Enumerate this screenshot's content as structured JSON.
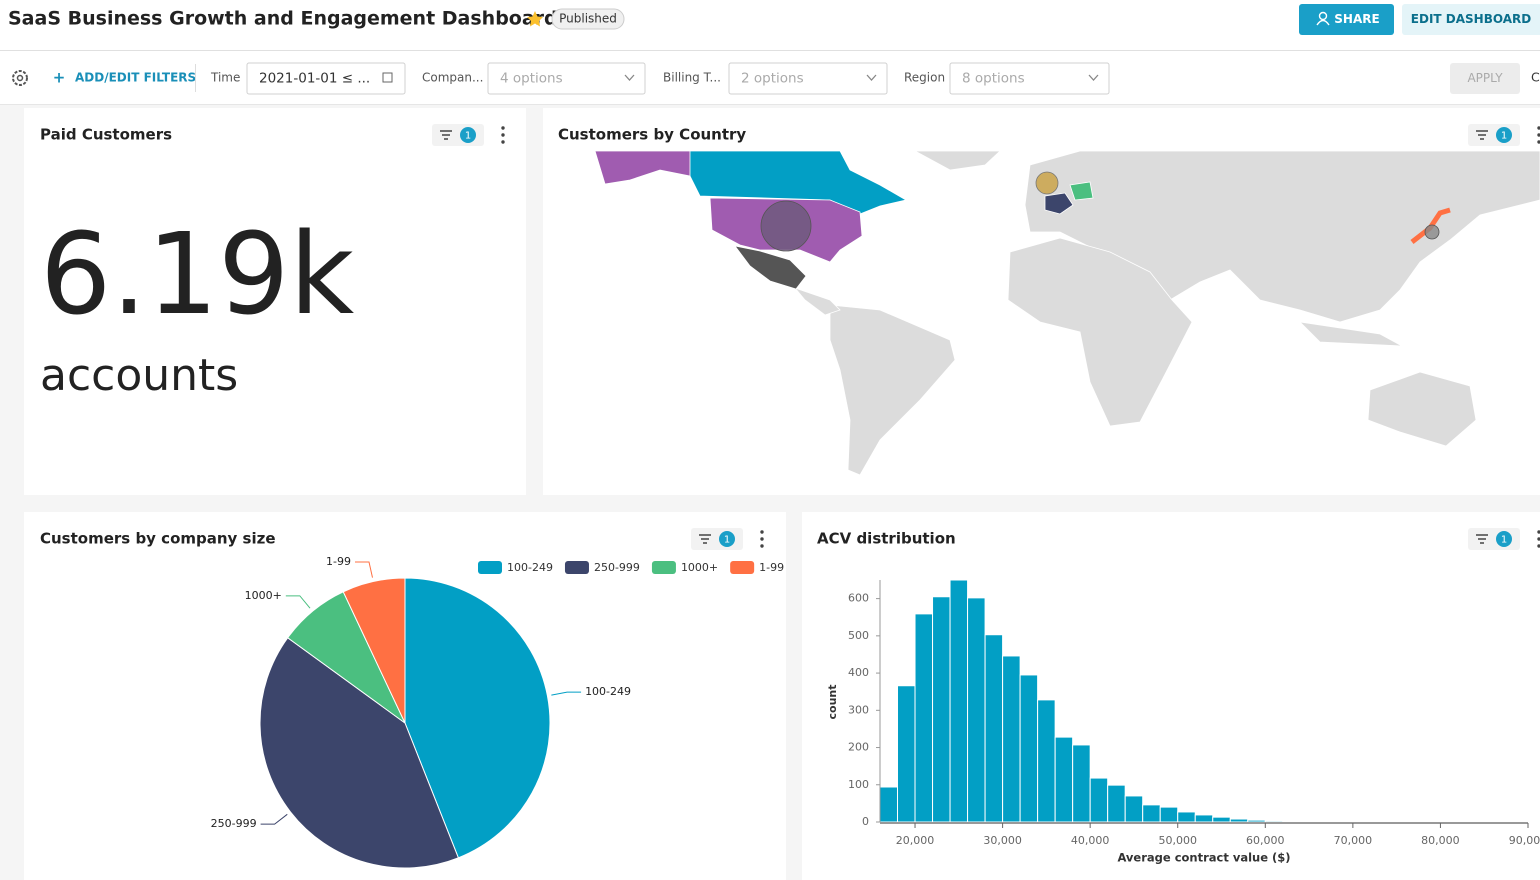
{
  "header": {
    "title": "SaaS Business Growth and Engagement Dashboard",
    "status": "Published",
    "share_button": "SHARE",
    "edit_button": "EDIT DASHBOARD"
  },
  "filter_bar": {
    "add_filters": "ADD/EDIT FILTERS",
    "filters": [
      {
        "label": "Time",
        "value": "2021-01-01 ≤ ..."
      },
      {
        "label": "Compan...",
        "value": "4 options"
      },
      {
        "label": "Billing T...",
        "value": "2 options"
      },
      {
        "label": "Region",
        "value": "8 options"
      }
    ],
    "apply_button": "APPLY",
    "cut_off_text": "C"
  },
  "panels": {
    "paid_customers": {
      "title": "Paid Customers",
      "filter_count": "1",
      "big_number": "6.19k",
      "subheader": "accounts"
    },
    "customers_by_country": {
      "title": "Customers by Country",
      "filter_count": "1"
    },
    "company_size": {
      "title": "Customers by company size",
      "filter_count": "1"
    },
    "acv": {
      "title": "ACV distribution",
      "filter_count": "1"
    }
  },
  "chart_data": [
    {
      "type": "pie",
      "categories": [
        "100-249",
        "250-999",
        "1000+",
        "1-99"
      ],
      "values": [
        44,
        41,
        8,
        7
      ],
      "colors": [
        "#029fc5",
        "#3c456b",
        "#4bbf80",
        "#ff7043"
      ],
      "legend": "top-right"
    },
    {
      "type": "histogram",
      "x_label": "Average contract value ($)",
      "y_label": "count",
      "color": "#029fc5",
      "bins": [
        16000,
        18000,
        20000,
        22000,
        24000,
        26000,
        28000,
        30000,
        32000,
        34000,
        36000,
        38000,
        40000,
        42000,
        44000,
        46000,
        48000,
        50000,
        52000,
        54000,
        56000,
        58000,
        60000,
        62000,
        64000,
        66000,
        68000,
        70000,
        72000,
        74000,
        76000,
        78000,
        80000,
        82000,
        84000,
        86000,
        88000,
        90000
      ],
      "values": [
        94,
        366,
        559,
        605,
        650,
        602,
        503,
        446,
        395,
        328,
        228,
        207,
        118,
        99,
        70,
        46,
        40,
        27,
        19,
        13,
        8,
        5,
        3,
        2,
        2,
        1,
        1,
        0,
        1,
        0,
        0,
        0,
        0,
        0,
        0,
        0,
        0
      ],
      "xlim": [
        16000,
        90000
      ],
      "ylim": [
        0,
        650
      ],
      "xticks": [
        {
          "value": 20000,
          "label": "20,000"
        },
        {
          "value": 30000,
          "label": "30,000"
        },
        {
          "value": 40000,
          "label": "40,000"
        },
        {
          "value": 50000,
          "label": "50,000"
        },
        {
          "value": 60000,
          "label": "60,000"
        },
        {
          "value": 70000,
          "label": "70,000"
        },
        {
          "value": 80000,
          "label": "80,000"
        },
        {
          "value": 90000,
          "label": "90,000"
        }
      ],
      "yticks": [
        0,
        100,
        200,
        300,
        400,
        500,
        600
      ]
    }
  ]
}
